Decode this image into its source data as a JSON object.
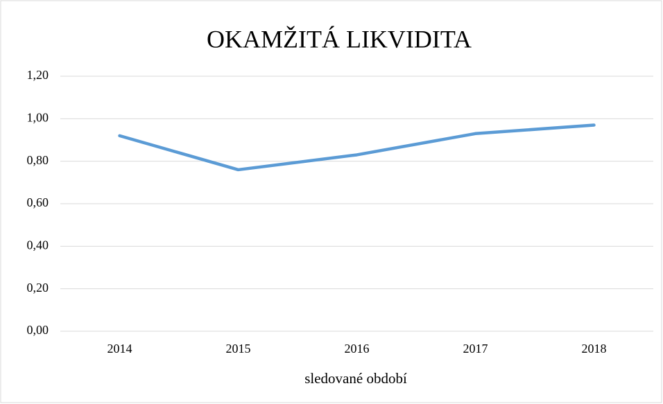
{
  "chart_data": {
    "type": "line",
    "title": "OKAMŽITÁ LIKVIDITA",
    "x_label": "sledované období",
    "categories": [
      "2014",
      "2015",
      "2016",
      "2017",
      "2018"
    ],
    "values": [
      0.92,
      0.76,
      0.83,
      0.93,
      0.97
    ],
    "color": "#5b9bd5",
    "ylim": [
      0,
      1.2
    ],
    "yticks": [
      {
        "value": 0,
        "label": "0,00"
      },
      {
        "value": 0.2,
        "label": "0,20"
      },
      {
        "value": 0.4,
        "label": "0,40"
      },
      {
        "value": 0.6,
        "label": "0,60"
      },
      {
        "value": 0.8,
        "label": "0,80"
      },
      {
        "value": 1,
        "label": "1,00"
      },
      {
        "value": 1.2,
        "label": "1,20"
      }
    ],
    "grid": true
  }
}
